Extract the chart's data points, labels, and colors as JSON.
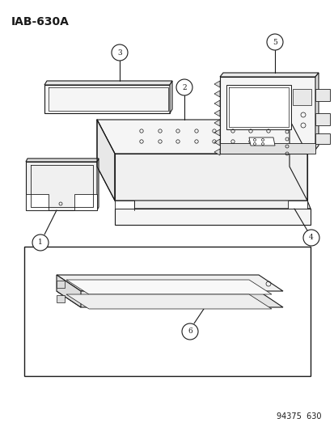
{
  "title": "IAB–630A",
  "footer": "94375  630",
  "bg_color": "#ffffff",
  "line_color": "#1a1a1a",
  "fill_light": "#f0f0f0",
  "fill_mid": "#e0e0e0",
  "fill_dark": "#cccccc"
}
